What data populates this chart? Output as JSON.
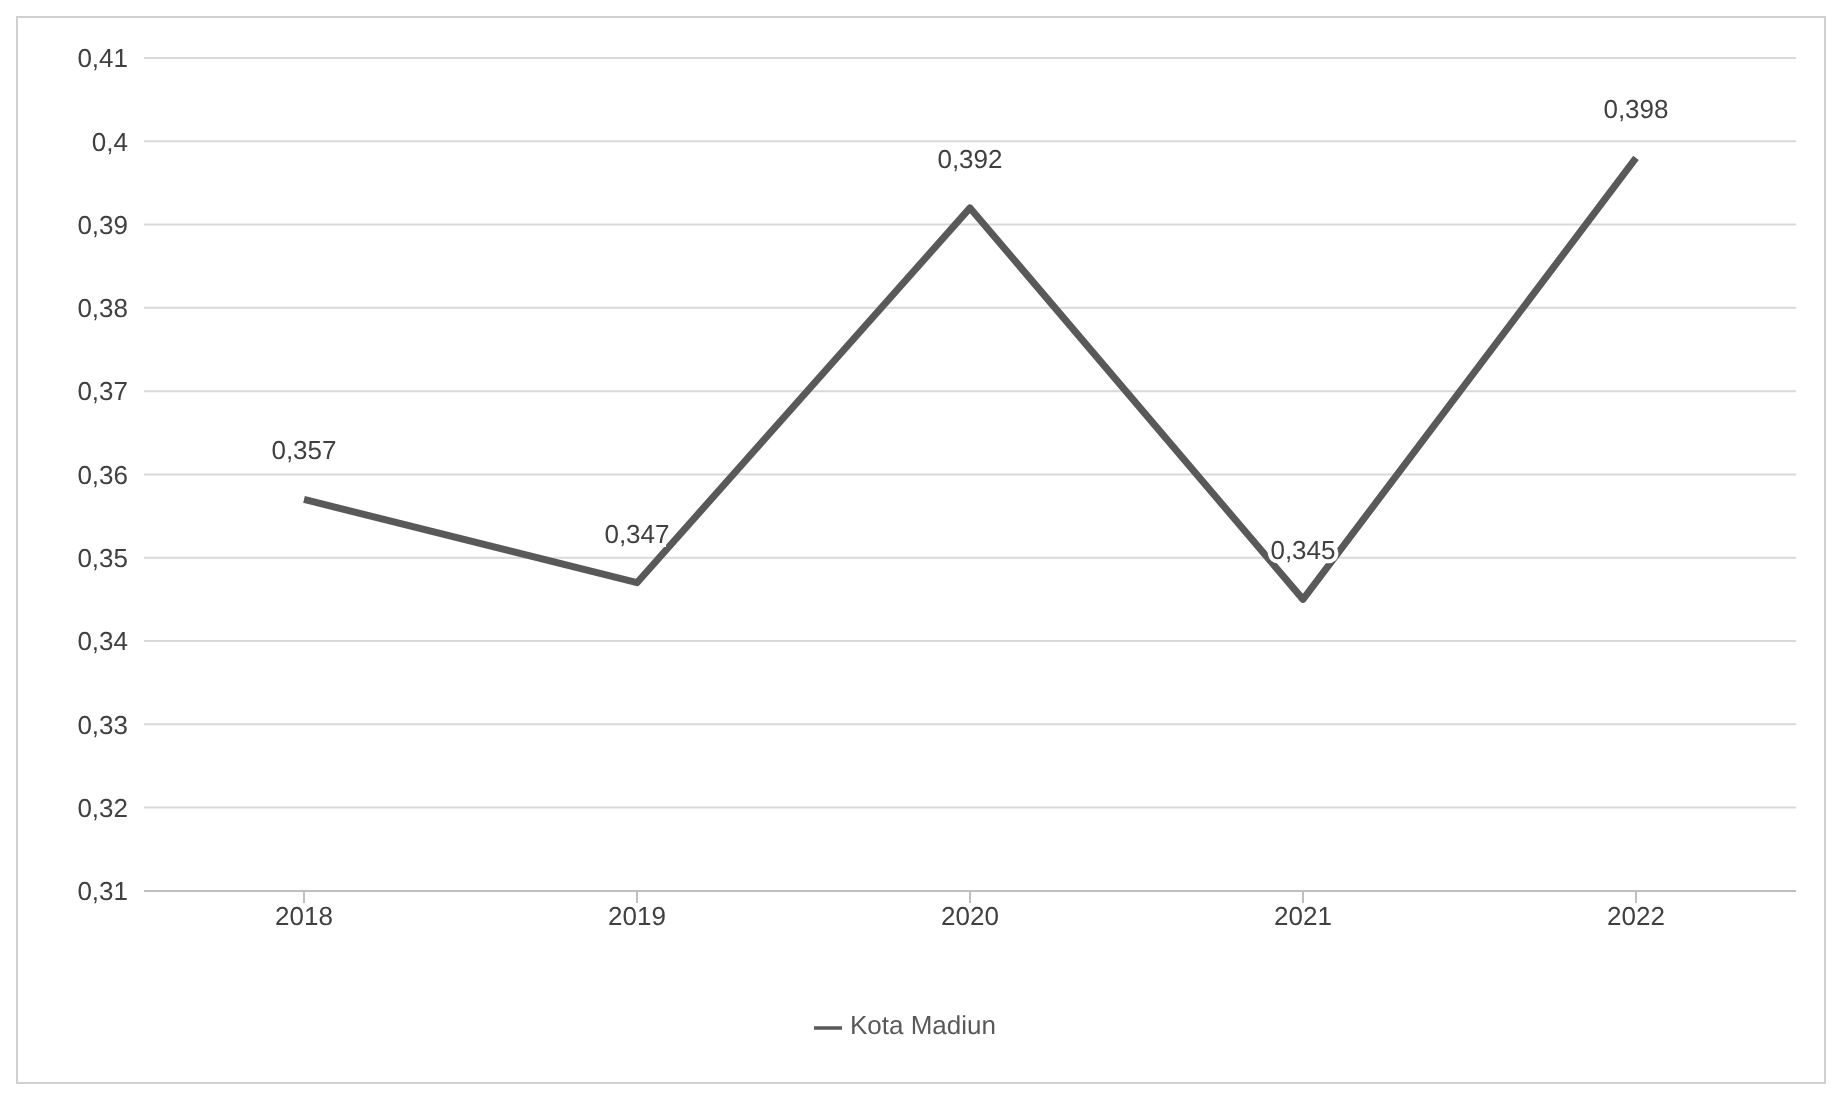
{
  "chart_data": {
    "type": "line",
    "categories": [
      "2018",
      "2019",
      "2020",
      "2021",
      "2022"
    ],
    "series": [
      {
        "name": "Kota Madiun",
        "color": "#595959",
        "values": [
          0.357,
          0.347,
          0.392,
          0.345,
          0.398
        ],
        "value_labels": [
          "0,357",
          "0,347",
          "0,392",
          "0,345",
          "0,398"
        ]
      }
    ],
    "ylim": [
      0.31,
      0.41
    ],
    "yticks": [
      {
        "value": 0.31,
        "label": "0,31"
      },
      {
        "value": 0.32,
        "label": "0,32"
      },
      {
        "value": 0.33,
        "label": "0,33"
      },
      {
        "value": 0.34,
        "label": "0,34"
      },
      {
        "value": 0.35,
        "label": "0,35"
      },
      {
        "value": 0.36,
        "label": "0,36"
      },
      {
        "value": 0.37,
        "label": "0,37"
      },
      {
        "value": 0.38,
        "label": "0,38"
      },
      {
        "value": 0.39,
        "label": "0,39"
      },
      {
        "value": 0.4,
        "label": "0,4"
      },
      {
        "value": 0.41,
        "label": "0,41"
      }
    ],
    "grid": "y",
    "legend": "bottom",
    "marker": "none",
    "line_style": "solid"
  }
}
